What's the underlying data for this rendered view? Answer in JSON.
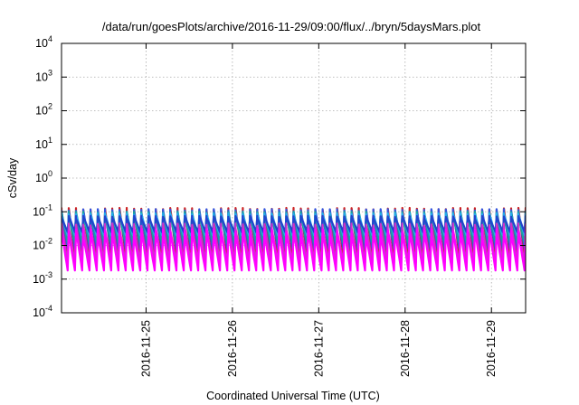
{
  "chart_data": {
    "type": "line",
    "title": "/data/run/goesPlots/archive/2016-11-29/09:00/flux/../bryn/5daysMars.plot",
    "xlabel": "Coordinated Universal Time (UTC)",
    "ylabel": "cSv/day",
    "yscale": "log",
    "ylim": [
      0.0001,
      10000
    ],
    "y_ticks": [
      {
        "base": "10",
        "exp": "-4"
      },
      {
        "base": "10",
        "exp": "-3"
      },
      {
        "base": "10",
        "exp": "-2"
      },
      {
        "base": "10",
        "exp": "-1"
      },
      {
        "base": "10",
        "exp": "0"
      },
      {
        "base": "10",
        "exp": "1"
      },
      {
        "base": "10",
        "exp": "2"
      },
      {
        "base": "10",
        "exp": "3"
      },
      {
        "base": "10",
        "exp": "4"
      }
    ],
    "xlim": [
      "2016-11-24T00:30",
      "2016-11-29T09:30"
    ],
    "x_ticks": [
      {
        "label": "2016-11-25",
        "value": "2016-11-25"
      },
      {
        "label": "2016-11-26",
        "value": "2016-11-26"
      },
      {
        "label": "2016-11-27",
        "value": "2016-11-27"
      },
      {
        "label": "2016-11-28",
        "value": "2016-11-28"
      },
      {
        "label": "2016-11-29",
        "value": "2016-11-29"
      }
    ],
    "grid": true,
    "legend": "none",
    "pattern": {
      "description": "periodic sawtooth, about 64 cycles over the window",
      "cycles": 64
    },
    "series": [
      {
        "color": "#cc2222",
        "peak": 0.13,
        "trough": 0.005
      },
      {
        "color": "#3355dd",
        "peak": 0.12,
        "trough": 0.008
      },
      {
        "color": "#1aa39a",
        "peak": 0.1,
        "trough": 0.012
      },
      {
        "color": "#22aaee",
        "peak": 0.09,
        "trough": 0.02
      },
      {
        "color": "#2244cc",
        "peak": 0.075,
        "trough": 0.025
      },
      {
        "color": "#cc33cc",
        "peak": 0.045,
        "trough": 0.003
      },
      {
        "color": "#ff00ff",
        "peak": 0.03,
        "trough": 0.0018
      }
    ]
  }
}
